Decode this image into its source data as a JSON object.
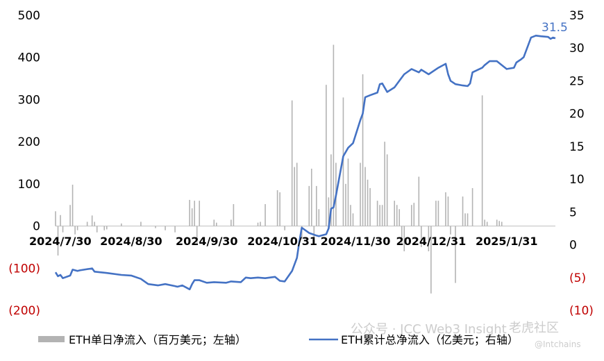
{
  "chart_data": {
    "type": "bar+line",
    "left_axis": {
      "ticks": [
        "500",
        "400",
        "300",
        "200",
        "100",
        "0",
        "(100)",
        "(200)"
      ],
      "range": [
        -200,
        500
      ]
    },
    "right_axis": {
      "ticks": [
        "35",
        "30",
        "25",
        "20",
        "15",
        "10",
        "5",
        "0",
        "(5)",
        "(10)"
      ],
      "range": [
        -10,
        35
      ]
    },
    "x_ticks": [
      "2024/7/30",
      "2024/8/30",
      "2024/9/30",
      "2024/10/31",
      "2024/11/30",
      "2024/12/31",
      "2025/1/31"
    ],
    "legend": {
      "bar_label": "ETH单日净流入（百万美元；左轴）",
      "line_label": "ETH累计总净流入（亿美元；右轴）"
    },
    "end_label": "31.5",
    "colors": {
      "bar": "#b3b3b3",
      "line": "#4472c4",
      "negative_tick": "#c00000"
    },
    "bar_series": {
      "name": "ETH单日净流入（百万美元；左轴）",
      "unit": "百万美元",
      "values": [
        {
          "x": "2024/7/30",
          "y": 35
        },
        {
          "x": "2024/7/31",
          "y": -70
        },
        {
          "x": "2024/8/1",
          "y": 26
        },
        {
          "x": "2024/8/2",
          "y": -15
        },
        {
          "x": "2024/8/5",
          "y": 50
        },
        {
          "x": "2024/8/6",
          "y": 98
        },
        {
          "x": "2024/8/7",
          "y": -20
        },
        {
          "x": "2024/8/8",
          "y": -10
        },
        {
          "x": "2024/8/12",
          "y": 10
        },
        {
          "x": "2024/8/14",
          "y": 25
        },
        {
          "x": "2024/8/15",
          "y": 10
        },
        {
          "x": "2024/8/16",
          "y": -15
        },
        {
          "x": "2024/8/19",
          "y": -10
        },
        {
          "x": "2024/8/20",
          "y": -8
        },
        {
          "x": "2024/8/26",
          "y": 6
        },
        {
          "x": "2024/9/3",
          "y": 10
        },
        {
          "x": "2024/9/9",
          "y": -5
        },
        {
          "x": "2024/9/13",
          "y": -10
        },
        {
          "x": "2024/9/17",
          "y": -15
        },
        {
          "x": "2024/9/23",
          "y": 62
        },
        {
          "x": "2024/9/24",
          "y": 42
        },
        {
          "x": "2024/9/25",
          "y": 60
        },
        {
          "x": "2024/9/26",
          "y": -40
        },
        {
          "x": "2024/9/27",
          "y": 60
        },
        {
          "x": "2024/10/3",
          "y": 15
        },
        {
          "x": "2024/10/4",
          "y": 8
        },
        {
          "x": "2024/10/10",
          "y": 15
        },
        {
          "x": "2024/10/11",
          "y": 52
        },
        {
          "x": "2024/10/21",
          "y": 8
        },
        {
          "x": "2024/10/22",
          "y": 10
        },
        {
          "x": "2024/10/24",
          "y": 52
        },
        {
          "x": "2024/10/29",
          "y": 85
        },
        {
          "x": "2024/10/30",
          "y": 80
        },
        {
          "x": "2024/11/1",
          "y": -10
        },
        {
          "x": "2024/11/4",
          "y": 298
        },
        {
          "x": "2024/11/5",
          "y": 140
        },
        {
          "x": "2024/11/6",
          "y": 150
        },
        {
          "x": "2024/11/8",
          "y": -30
        },
        {
          "x": "2024/11/11",
          "y": 95
        },
        {
          "x": "2024/11/12",
          "y": 136
        },
        {
          "x": "2024/11/13",
          "y": -40
        },
        {
          "x": "2024/11/14",
          "y": 95
        },
        {
          "x": "2024/11/15",
          "y": 40
        },
        {
          "x": "2024/11/18",
          "y": 335
        },
        {
          "x": "2024/11/19",
          "y": 68
        },
        {
          "x": "2024/11/20",
          "y": 170
        },
        {
          "x": "2024/11/21",
          "y": 430
        },
        {
          "x": "2024/11/22",
          "y": 150
        },
        {
          "x": "2024/11/25",
          "y": 305
        },
        {
          "x": "2024/11/26",
          "y": 100
        },
        {
          "x": "2024/11/27",
          "y": 160
        },
        {
          "x": "2024/11/28",
          "y": 50
        },
        {
          "x": "2024/11/29",
          "y": 30
        },
        {
          "x": "2024/12/2",
          "y": 150
        },
        {
          "x": "2024/12/3",
          "y": 360
        },
        {
          "x": "2024/12/4",
          "y": 140
        },
        {
          "x": "2024/12/5",
          "y": 110
        },
        {
          "x": "2024/12/6",
          "y": 90
        },
        {
          "x": "2024/12/9",
          "y": 60
        },
        {
          "x": "2024/12/10",
          "y": 50
        },
        {
          "x": "2024/12/11",
          "y": 50
        },
        {
          "x": "2024/12/12",
          "y": 200
        },
        {
          "x": "2024/12/13",
          "y": 170
        },
        {
          "x": "2024/12/16",
          "y": 60
        },
        {
          "x": "2024/12/17",
          "y": 50
        },
        {
          "x": "2024/12/18",
          "y": 40
        },
        {
          "x": "2024/12/19",
          "y": -40
        },
        {
          "x": "2024/12/20",
          "y": -60
        },
        {
          "x": "2024/12/23",
          "y": 50
        },
        {
          "x": "2024/12/24",
          "y": 55
        },
        {
          "x": "2024/12/26",
          "y": 117
        },
        {
          "x": "2024/12/27",
          "y": -50
        },
        {
          "x": "2024/12/30",
          "y": -60
        },
        {
          "x": "2024/12/31",
          "y": -160
        },
        {
          "x": "2025/1/2",
          "y": 60
        },
        {
          "x": "2025/1/3",
          "y": 60
        },
        {
          "x": "2025/1/6",
          "y": 80
        },
        {
          "x": "2025/1/7",
          "y": 70
        },
        {
          "x": "2025/1/8",
          "y": -20
        },
        {
          "x": "2025/1/10",
          "y": -135
        },
        {
          "x": "2025/1/13",
          "y": 70
        },
        {
          "x": "2025/1/14",
          "y": 30
        },
        {
          "x": "2025/1/15",
          "y": 30
        },
        {
          "x": "2025/1/17",
          "y": 90
        },
        {
          "x": "2025/1/21",
          "y": 310
        },
        {
          "x": "2025/1/22",
          "y": 15
        },
        {
          "x": "2025/1/23",
          "y": 10
        },
        {
          "x": "2025/1/27",
          "y": 15
        },
        {
          "x": "2025/1/28",
          "y": 12
        },
        {
          "x": "2025/1/29",
          "y": 10
        }
      ]
    },
    "line_series": {
      "name": "ETH累计总净流入（亿美元；右轴）",
      "unit": "亿美元",
      "values": [
        {
          "x": "2024/7/30",
          "y": -4.2
        },
        {
          "x": "2024/7/31",
          "y": -4.8
        },
        {
          "x": "2024/8/1",
          "y": -4.6
        },
        {
          "x": "2024/8/2",
          "y": -5.1
        },
        {
          "x": "2024/8/5",
          "y": -4.7
        },
        {
          "x": "2024/8/6",
          "y": -3.8
        },
        {
          "x": "2024/8/8",
          "y": -4.0
        },
        {
          "x": "2024/8/9",
          "y": -3.9
        },
        {
          "x": "2024/8/14",
          "y": -3.6
        },
        {
          "x": "2024/8/15",
          "y": -4.1
        },
        {
          "x": "2024/8/20",
          "y": -4.3
        },
        {
          "x": "2024/8/26",
          "y": -4.6
        },
        {
          "x": "2024/8/30",
          "y": -4.7
        },
        {
          "x": "2024/9/3",
          "y": -5.2
        },
        {
          "x": "2024/9/6",
          "y": -6.0
        },
        {
          "x": "2024/9/10",
          "y": -6.2
        },
        {
          "x": "2024/9/13",
          "y": -6.0
        },
        {
          "x": "2024/9/17",
          "y": -6.3
        },
        {
          "x": "2024/9/18",
          "y": -6.4
        },
        {
          "x": "2024/9/20",
          "y": -6.2
        },
        {
          "x": "2024/9/23",
          "y": -6.8
        },
        {
          "x": "2024/9/24",
          "y": -6.0
        },
        {
          "x": "2024/9/25",
          "y": -5.4
        },
        {
          "x": "2024/9/27",
          "y": -5.4
        },
        {
          "x": "2024/9/30",
          "y": -5.8
        },
        {
          "x": "2024/10/3",
          "y": -5.7
        },
        {
          "x": "2024/10/8",
          "y": -5.8
        },
        {
          "x": "2024/10/10",
          "y": -5.6
        },
        {
          "x": "2024/10/14",
          "y": -5.7
        },
        {
          "x": "2024/10/16",
          "y": -5.0
        },
        {
          "x": "2024/10/18",
          "y": -5.1
        },
        {
          "x": "2024/10/21",
          "y": -5.0
        },
        {
          "x": "2024/10/24",
          "y": -5.1
        },
        {
          "x": "2024/10/28",
          "y": -4.9
        },
        {
          "x": "2024/10/30",
          "y": -5.5
        },
        {
          "x": "2024/11/1",
          "y": -5.6
        },
        {
          "x": "2024/11/4",
          "y": -4.0
        },
        {
          "x": "2024/11/6",
          "y": -2.0
        },
        {
          "x": "2024/11/7",
          "y": 0.5
        },
        {
          "x": "2024/11/8",
          "y": 2.6
        },
        {
          "x": "2024/11/11",
          "y": 1.8
        },
        {
          "x": "2024/11/14",
          "y": 1.4
        },
        {
          "x": "2024/11/15",
          "y": 1.3
        },
        {
          "x": "2024/11/18",
          "y": 1.6
        },
        {
          "x": "2024/11/19",
          "y": 2.5
        },
        {
          "x": "2024/11/20",
          "y": 5.5
        },
        {
          "x": "2024/11/21",
          "y": 5.7
        },
        {
          "x": "2024/11/22",
          "y": 7.5
        },
        {
          "x": "2024/11/25",
          "y": 13.5
        },
        {
          "x": "2024/11/27",
          "y": 14.8
        },
        {
          "x": "2024/11/29",
          "y": 15.5
        },
        {
          "x": "2024/12/2",
          "y": 19.0
        },
        {
          "x": "2024/12/3",
          "y": 20.0
        },
        {
          "x": "2024/12/4",
          "y": 22.5
        },
        {
          "x": "2024/12/6",
          "y": 22.8
        },
        {
          "x": "2024/12/9",
          "y": 23.2
        },
        {
          "x": "2024/12/10",
          "y": 24.5
        },
        {
          "x": "2024/12/11",
          "y": 24.6
        },
        {
          "x": "2024/12/13",
          "y": 23.3
        },
        {
          "x": "2024/12/16",
          "y": 24.0
        },
        {
          "x": "2024/12/18",
          "y": 25.0
        },
        {
          "x": "2024/12/20",
          "y": 26.0
        },
        {
          "x": "2024/12/23",
          "y": 26.8
        },
        {
          "x": "2024/12/26",
          "y": 26.3
        },
        {
          "x": "2024/12/27",
          "y": 26.7
        },
        {
          "x": "2024/12/30",
          "y": 26.0
        },
        {
          "x": "2025/1/3",
          "y": 27.0
        },
        {
          "x": "2025/1/6",
          "y": 27.6
        },
        {
          "x": "2025/1/7",
          "y": 26.0
        },
        {
          "x": "2025/1/8",
          "y": 25.0
        },
        {
          "x": "2025/1/10",
          "y": 24.5
        },
        {
          "x": "2025/1/13",
          "y": 24.3
        },
        {
          "x": "2025/1/15",
          "y": 24.2
        },
        {
          "x": "2025/1/16",
          "y": 24.6
        },
        {
          "x": "2025/1/17",
          "y": 26.3
        },
        {
          "x": "2025/1/21",
          "y": 27.0
        },
        {
          "x": "2025/1/22",
          "y": 27.4
        },
        {
          "x": "2025/1/24",
          "y": 28.0
        },
        {
          "x": "2025/1/27",
          "y": 28.0
        },
        {
          "x": "2025/1/29",
          "y": 27.4
        },
        {
          "x": "2025/1/31",
          "y": 26.8
        },
        {
          "x": "2025/2/3",
          "y": 27.0
        },
        {
          "x": "2025/2/4",
          "y": 27.8
        },
        {
          "x": "2025/2/6",
          "y": 28.3
        },
        {
          "x": "2025/2/7",
          "y": 28.6
        },
        {
          "x": "2025/2/10",
          "y": 31.6
        },
        {
          "x": "2025/2/12",
          "y": 31.9
        },
        {
          "x": "2025/2/14",
          "y": 31.8
        },
        {
          "x": "2025/2/17",
          "y": 31.7
        },
        {
          "x": "2025/2/18",
          "y": 31.4
        },
        {
          "x": "2025/2/19",
          "y": 31.6
        },
        {
          "x": "2025/2/20",
          "y": 31.5
        }
      ]
    }
  },
  "watermark": {
    "line1": "公众号 · JCC Web3 Insight",
    "line2": "老虎社区",
    "line3": "@Intchains"
  }
}
